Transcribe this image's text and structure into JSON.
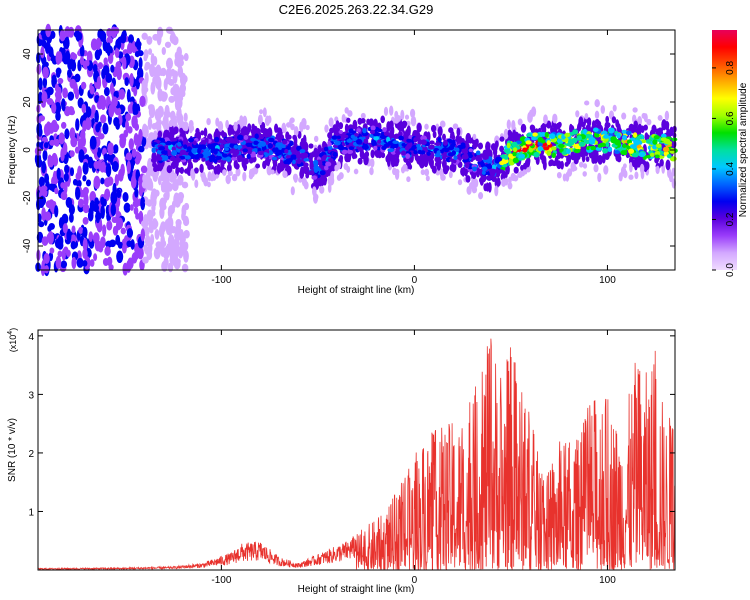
{
  "title": "C2E6.2025.263.22.34.G29",
  "chart_data": [
    {
      "type": "heatmap",
      "title": "C2E6.2025.263.22.34.G29",
      "xlabel": "Height of straight line (km)",
      "ylabel": "Frequency (Hz)",
      "xlim": [
        -195,
        135
      ],
      "ylim": [
        -50,
        50
      ],
      "xticks": [
        -100,
        0,
        100
      ],
      "xtick_labels": [
        "-100",
        "0",
        "100"
      ],
      "yticks": [
        -40,
        -20,
        0,
        20,
        40
      ],
      "ytick_labels": [
        "-40",
        "-20",
        "0",
        "20",
        "40"
      ],
      "ridge": {
        "description": "frequency of strongest spectral line vs height",
        "x": [
          -135,
          -120,
          -100,
          -80,
          -60,
          -50,
          -40,
          -20,
          0,
          20,
          30,
          40,
          50,
          60,
          70,
          80,
          90,
          100,
          110,
          120,
          130,
          135
        ],
        "y": [
          0,
          0,
          0,
          2,
          -2,
          -9,
          3,
          5,
          1,
          0,
          -4,
          -8,
          -1,
          2,
          2,
          3,
          4,
          4,
          3,
          1,
          2,
          0
        ]
      },
      "noise_region_x": [
        -195,
        -130
      ],
      "colorbar": {
        "label": "Normalized spectral amplitude",
        "range": [
          0,
          0.95
        ],
        "ticks": [
          0,
          0.2,
          0.4,
          0.6,
          0.8
        ],
        "tick_labels": [
          "0.0",
          "0.2",
          "0.4",
          "0.6",
          "0.8"
        ],
        "colormap": [
          "#f0dcff",
          "#d3a8ff",
          "#9a3dfa",
          "#5a00dd",
          "#0000f0",
          "#0064ff",
          "#00c8ff",
          "#00e0a0",
          "#00e000",
          "#a0ff00",
          "#ffff00",
          "#ffaa00",
          "#ff5000",
          "#ff0000",
          "#e8005a"
        ]
      }
    },
    {
      "type": "line",
      "xlabel": "Height of straight line (km)",
      "ylabel": "SNR (10 * v/v)",
      "y_multiplier_label": "(x10",
      "y_multiplier_exp": "4",
      "y_multiplier_close": ")",
      "xlim": [
        -195,
        135
      ],
      "ylim": [
        0,
        4.1
      ],
      "xticks": [
        -100,
        0,
        100
      ],
      "xtick_labels": [
        "-100",
        "0",
        "100"
      ],
      "yticks": [
        1,
        2,
        3,
        4
      ],
      "ytick_labels": [
        "1",
        "2",
        "3",
        "4"
      ],
      "series": [
        {
          "name": "SNR",
          "color": "#e8322d",
          "envelope_x": [
            -195,
            -150,
            -125,
            -110,
            -95,
            -90,
            -80,
            -70,
            -60,
            -45,
            -35,
            -25,
            -15,
            -5,
            5,
            15,
            25,
            30,
            35,
            40,
            45,
            50,
            55,
            60,
            65,
            70,
            75,
            80,
            85,
            90,
            95,
            100,
            105,
            110,
            115,
            120,
            125,
            130,
            135
          ],
          "envelope_y": [
            0.03,
            0.04,
            0.06,
            0.12,
            0.3,
            0.45,
            0.5,
            0.22,
            0.12,
            0.35,
            0.5,
            0.75,
            1.0,
            1.6,
            2.3,
            2.5,
            2.6,
            3.0,
            3.5,
            4.1,
            3.4,
            3.9,
            3.2,
            2.8,
            1.8,
            1.7,
            2.2,
            2.2,
            2.3,
            2.8,
            3.1,
            3.0,
            2.6,
            2.8,
            3.7,
            3.4,
            3.8,
            2.6,
            2.8
          ]
        }
      ]
    }
  ]
}
